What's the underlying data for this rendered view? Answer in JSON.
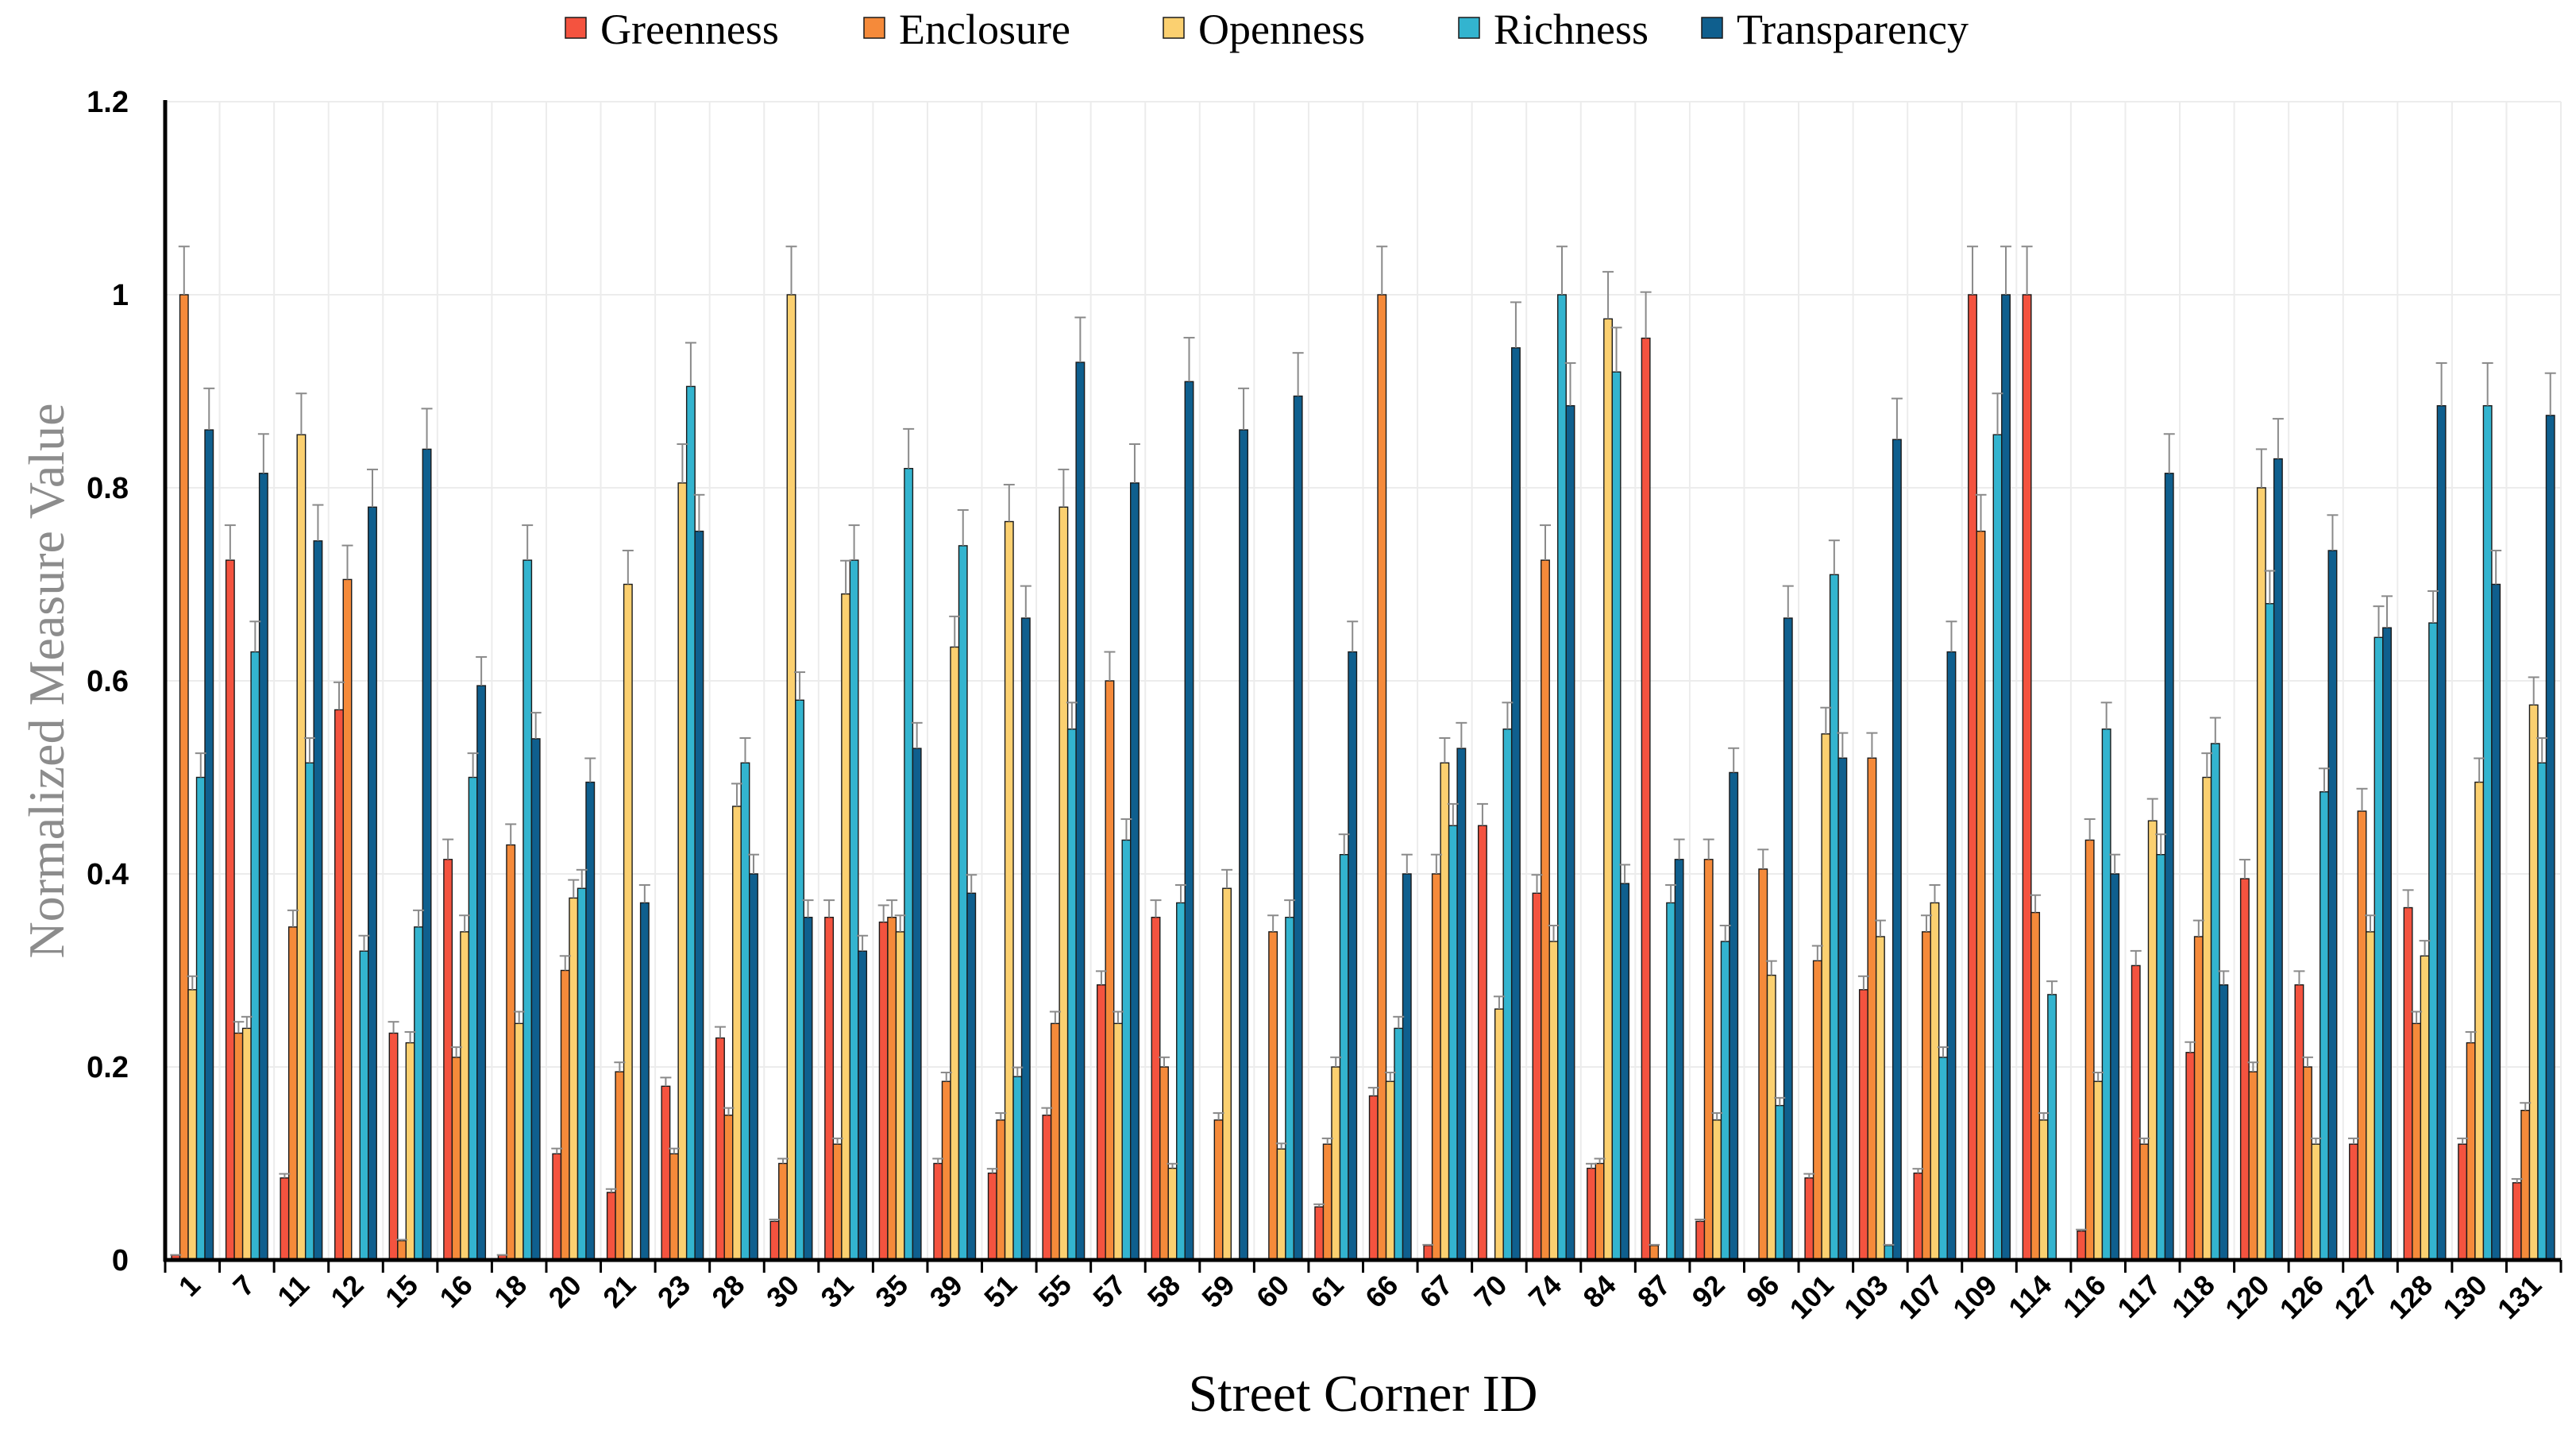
{
  "chart_data": {
    "type": "bar",
    "title": "",
    "xlabel": "Street Corner ID",
    "ylabel": "Normalized Measure Value",
    "ylim": [
      0,
      1.2
    ],
    "yticks": [
      "0",
      "0.2",
      "0.4",
      "0.6",
      "0.8",
      "1",
      "1.2"
    ],
    "ytick_values": [
      0,
      0.2,
      0.4,
      0.6,
      0.8,
      1.0,
      1.2
    ],
    "grid": true,
    "legend_position": "top-center",
    "error_bars": "positive",
    "categories": [
      "1",
      "7",
      "11",
      "12",
      "15",
      "16",
      "18",
      "20",
      "21",
      "23",
      "28",
      "30",
      "31",
      "35",
      "39",
      "51",
      "55",
      "57",
      "58",
      "59",
      "60",
      "61",
      "66",
      "67",
      "70",
      "74",
      "84",
      "87",
      "92",
      "96",
      "101",
      "103",
      "107",
      "109",
      "114",
      "116",
      "117",
      "118",
      "120",
      "126",
      "127",
      "128",
      "130",
      "131"
    ],
    "series": [
      {
        "name": "Greenness",
        "color": "#f4533f",
        "values": [
          0.005,
          0.725,
          0.085,
          0.57,
          0.235,
          0.415,
          0.005,
          0.11,
          0.07,
          0.18,
          0.23,
          0.04,
          0.355,
          0.35,
          0.1,
          0.09,
          0.15,
          0.285,
          0.355,
          0.0,
          0.0,
          0.055,
          0.17,
          0.015,
          0.45,
          0.38,
          0.095,
          0.955,
          0.04,
          0.0,
          0.085,
          0.28,
          0.09,
          1.0,
          1.0,
          0.03,
          0.305,
          0.215,
          0.395,
          0.285,
          0.12,
          0.365,
          0.12,
          0.08
        ]
      },
      {
        "name": "Enclosure",
        "color": "#f58a3a",
        "values": [
          1.0,
          0.235,
          0.345,
          0.705,
          0.02,
          0.21,
          0.43,
          0.3,
          0.195,
          0.11,
          0.15,
          0.1,
          0.12,
          0.355,
          0.185,
          0.145,
          0.245,
          0.6,
          0.2,
          0.145,
          0.34,
          0.12,
          1.0,
          0.4,
          0.0,
          0.725,
          0.1,
          0.015,
          0.415,
          0.405,
          0.31,
          0.52,
          0.34,
          0.755,
          0.36,
          0.435,
          0.12,
          0.335,
          0.195,
          0.2,
          0.465,
          0.245,
          0.225,
          0.155
        ]
      },
      {
        "name": "Openness",
        "color": "#fbd070",
        "values": [
          0.28,
          0.24,
          0.855,
          0.0,
          0.225,
          0.34,
          0.245,
          0.375,
          0.7,
          0.805,
          0.47,
          1.0,
          0.69,
          0.34,
          0.635,
          0.765,
          0.78,
          0.245,
          0.095,
          0.385,
          0.115,
          0.2,
          0.185,
          0.515,
          0.26,
          0.33,
          0.975,
          0.0,
          0.145,
          0.295,
          0.545,
          0.335,
          0.37,
          0.0,
          0.145,
          0.185,
          0.455,
          0.5,
          0.8,
          0.12,
          0.34,
          0.315,
          0.495,
          0.575
        ]
      },
      {
        "name": "Richness",
        "color": "#33b4cf",
        "values": [
          0.5,
          0.63,
          0.515,
          0.32,
          0.345,
          0.5,
          0.725,
          0.385,
          0.0,
          0.905,
          0.515,
          0.58,
          0.725,
          0.82,
          0.74,
          0.19,
          0.55,
          0.435,
          0.37,
          0.0,
          0.355,
          0.42,
          0.24,
          0.45,
          0.55,
          1.0,
          0.92,
          0.37,
          0.33,
          0.16,
          0.71,
          0.015,
          0.21,
          0.855,
          0.275,
          0.55,
          0.42,
          0.535,
          0.68,
          0.485,
          0.645,
          0.66,
          0.885,
          0.515
        ]
      },
      {
        "name": "Transparency",
        "color": "#0f5f8e",
        "values": [
          0.86,
          0.815,
          0.745,
          0.78,
          0.84,
          0.595,
          0.54,
          0.495,
          0.37,
          0.755,
          0.4,
          0.355,
          0.32,
          0.53,
          0.38,
          0.665,
          0.93,
          0.805,
          0.91,
          0.86,
          0.895,
          0.63,
          0.4,
          0.53,
          0.945,
          0.885,
          0.39,
          0.415,
          0.505,
          0.665,
          0.52,
          0.85,
          0.63,
          1.0,
          0.0,
          0.4,
          0.815,
          0.285,
          0.83,
          0.735,
          0.655,
          0.885,
          0.7,
          0.875
        ]
      }
    ]
  }
}
